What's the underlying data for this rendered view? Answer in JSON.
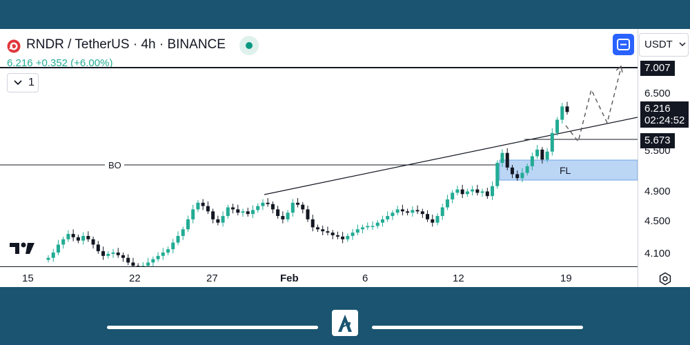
{
  "header": {
    "title": "RNDR / TetherUS · 4h · BINANCE",
    "price_change": "6.216 +0.352 (+6.00%)",
    "interval_value": "1",
    "currency": "USDT"
  },
  "colors": {
    "frame_bg": "#1a5470",
    "up": "#22ab94",
    "down": "#131722",
    "zone": "#bbd5f5",
    "accent": "#2962ff"
  },
  "icons": [
    "rndr-logo-icon",
    "live-status-icon",
    "chevron-down-icon",
    "fullscreen-icon",
    "dropdown-arrow-icon",
    "settings-gear-icon",
    "tradingview-logo-icon",
    "app-logo-icon"
  ],
  "annotations": {
    "breakout_label": "BO",
    "zone_label": "FL"
  },
  "price_scale": {
    "labels": [
      "6.500",
      "5.500",
      "4.900",
      "4.500",
      "4.100"
    ],
    "last_price": "6.216",
    "countdown": "02:24:52",
    "target_level": "7.007",
    "support_level": "5.673"
  },
  "time_axis": {
    "labels": [
      "15",
      "22",
      "27",
      "Feb",
      "6",
      "12",
      "19"
    ]
  },
  "chart_data": {
    "type": "candlestick",
    "symbol": "RNDR / TetherUS",
    "timeframe": "4h",
    "exchange": "BINANCE",
    "last_price": 6.216,
    "change": 0.352,
    "change_pct": 6.0,
    "horizontal_levels": [
      7.007,
      5.673,
      5.19
    ],
    "zone_fl": [
      4.98,
      5.27
    ],
    "closes_approx": [
      4.02,
      4.1,
      4.22,
      4.3,
      4.38,
      4.33,
      4.28,
      4.35,
      4.3,
      4.22,
      4.12,
      4.05,
      4.08,
      4.1,
      4.06,
      4.02,
      3.95,
      3.9,
      3.85,
      3.9,
      3.95,
      4.0,
      4.05,
      4.1,
      4.15,
      4.25,
      4.35,
      4.45,
      4.6,
      4.75,
      4.85,
      4.8,
      4.72,
      4.6,
      4.55,
      4.65,
      4.78,
      4.75,
      4.7,
      4.72,
      4.68,
      4.74,
      4.8,
      4.85,
      4.83,
      4.75,
      4.65,
      4.6,
      4.7,
      4.85,
      4.82,
      4.75,
      4.6,
      4.48,
      4.45,
      4.42,
      4.4,
      4.36,
      4.34,
      4.3,
      4.35,
      4.4,
      4.45,
      4.48,
      4.5,
      4.5,
      4.55,
      4.6,
      4.65,
      4.7,
      4.75,
      4.72,
      4.7,
      4.74,
      4.72,
      4.68,
      4.6,
      4.55,
      4.65,
      4.78,
      4.9,
      5.0,
      5.05,
      4.98,
      5.02,
      5.05,
      5.0,
      5.02,
      4.95,
      5.1,
      5.45,
      5.6,
      5.38,
      5.28,
      5.22,
      5.3,
      5.4,
      5.55,
      5.65,
      5.5,
      5.62,
      5.9,
      6.1,
      6.3,
      6.216
    ]
  }
}
